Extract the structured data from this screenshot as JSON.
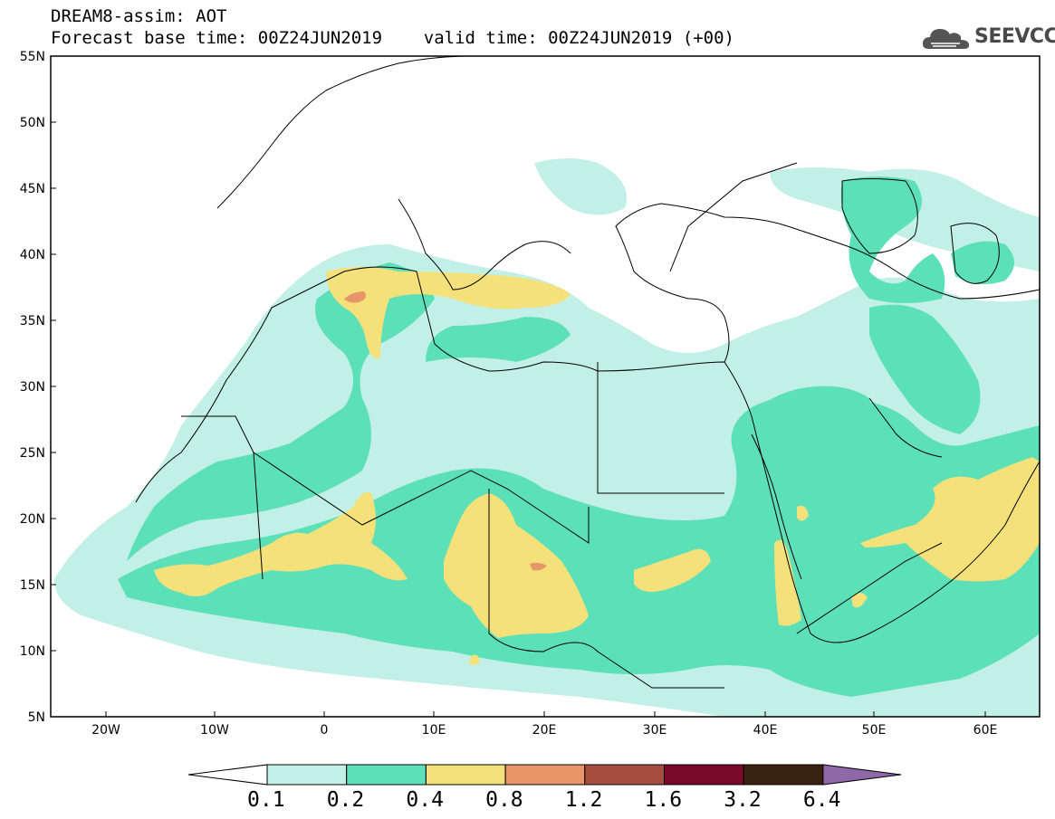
{
  "title": {
    "line1": "DREAM8-assim: AOT",
    "line2": "Forecast base time: 00Z24JUN2019    valid time: 00Z24JUN2019 (+00)"
  },
  "logo": {
    "text": "SEEVCCC",
    "icon": "cloud-logo-icon"
  },
  "map": {
    "lon_range": [
      -25,
      65
    ],
    "lat_range": [
      5,
      55
    ],
    "lon_ticks": [
      "20W",
      "10W",
      "0",
      "10E",
      "20E",
      "30E",
      "40E",
      "50E",
      "60E"
    ],
    "lat_ticks": [
      "55N",
      "50N",
      "45N",
      "40N",
      "35N",
      "30N",
      "25N",
      "20N",
      "15N",
      "10N",
      "5N"
    ]
  },
  "colorbar": {
    "labels": [
      "0.1",
      "0.2",
      "0.4",
      "0.8",
      "1.2",
      "1.6",
      "3.2",
      "6.4"
    ],
    "colors": [
      "#ffffff",
      "#c2f0e6",
      "#5ce0b8",
      "#f4e17a",
      "#e8956a",
      "#a54e3f",
      "#7a0a2a",
      "#3a2210",
      "#8f68a8"
    ]
  },
  "colors": {
    "aot_0_1": "#c2f0e6",
    "aot_0_2": "#5ce0b8",
    "aot_0_4": "#f4e17a",
    "aot_0_8": "#e8956a"
  }
}
